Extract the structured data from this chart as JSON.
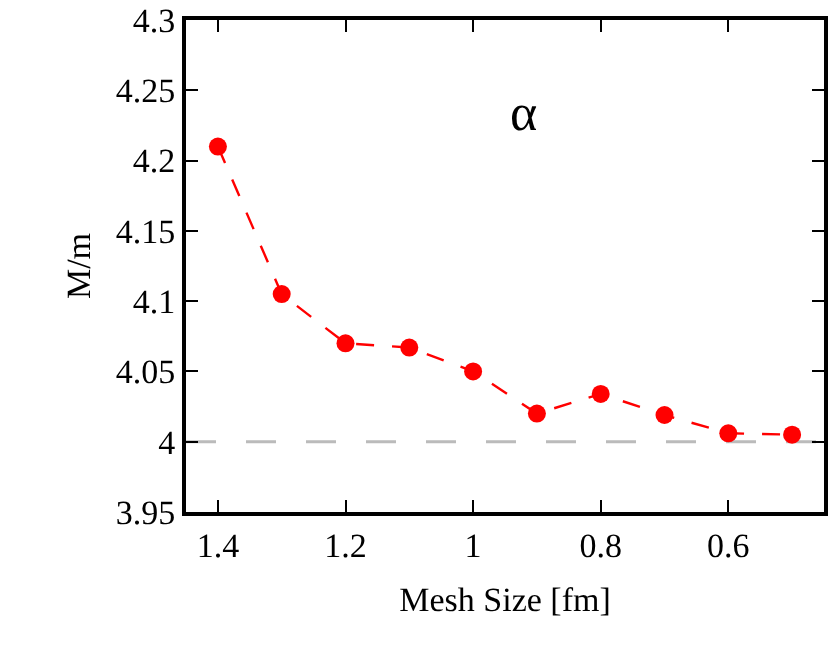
{
  "chart_data": {
    "type": "line",
    "xlabel": "Mesh Size [fm]",
    "ylabel": "M/m",
    "annotations": [
      "α"
    ],
    "x": [
      1.4,
      1.3,
      1.2,
      1.1,
      1.0,
      0.9,
      0.8,
      0.7,
      0.6,
      0.5
    ],
    "series": [
      {
        "color": "#ff0000",
        "values": [
          4.21,
          4.105,
          4.07,
          4.067,
          4.05,
          4.02,
          4.034,
          4.019,
          4.006,
          4.005
        ]
      }
    ],
    "xlim": [
      1.45,
      0.45
    ],
    "xticks": [
      1.4,
      1.2,
      1,
      0.8,
      0.6
    ],
    "ylim": [
      3.95,
      4.3
    ],
    "yticks": [
      3.95,
      4,
      4.05,
      4.1,
      4.15,
      4.2,
      4.25,
      4.3
    ],
    "ref_lines": [
      {
        "axis": "y",
        "value": 4,
        "color": "#bbbbbb",
        "line_style": "dashed"
      }
    ],
    "grid": false,
    "marker": "circle",
    "line_style": "dashed"
  }
}
